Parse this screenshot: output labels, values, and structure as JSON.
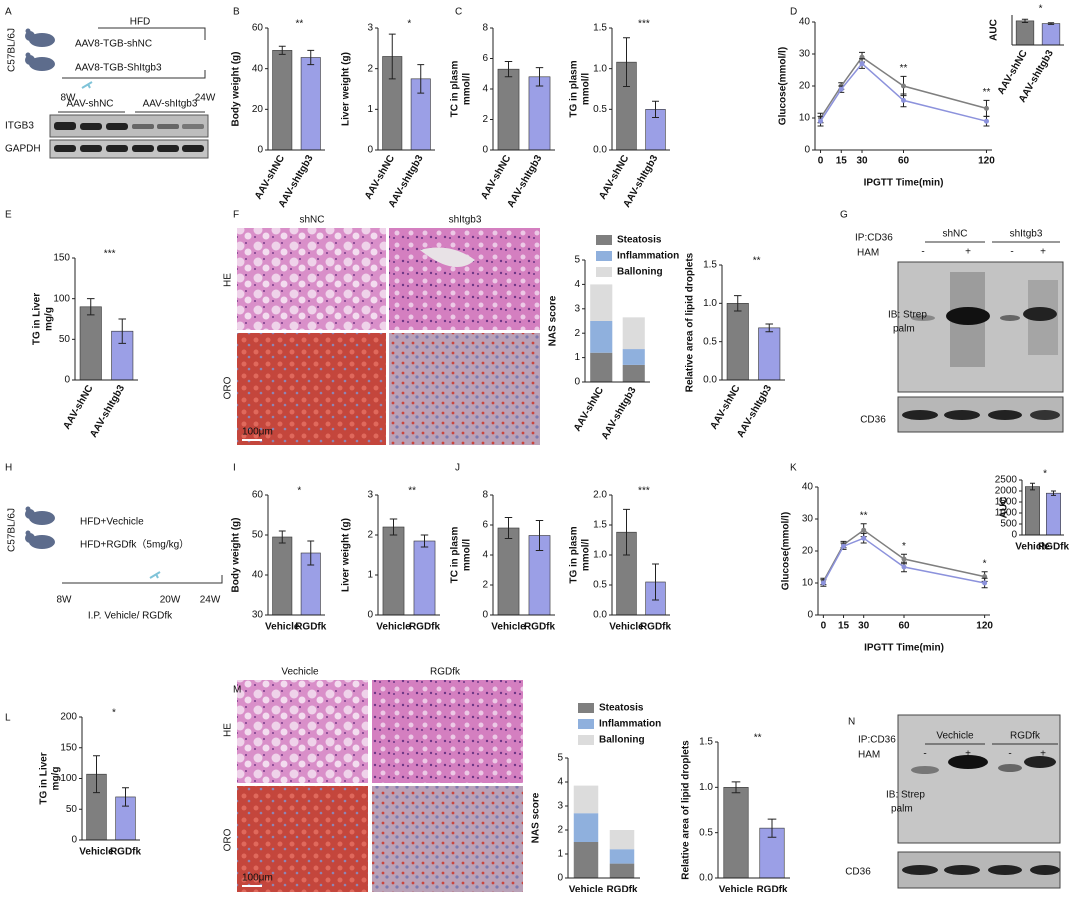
{
  "letters": [
    "A",
    "B",
    "C",
    "D",
    "E",
    "F",
    "G",
    "H",
    "I",
    "J",
    "K",
    "L",
    "M",
    "N"
  ],
  "A": {
    "strain": "C57BL/6J",
    "diet": "HFD",
    "groups": [
      "AAV8-TGB-shNC",
      "AAV8-TGB-ShItgb3"
    ],
    "timepoints": [
      "8W",
      "24W"
    ],
    "blot_groups": [
      "AAV-shNC",
      "AAV-shItgb3"
    ],
    "blot_rows": [
      "ITGB3",
      "GAPDH"
    ]
  },
  "F": {
    "columns": [
      "shNC",
      "shItgb3"
    ],
    "rows": [
      "HE",
      "ORO"
    ],
    "scale_bar": "100μm"
  },
  "G": {
    "ip": "IP:CD36",
    "groups": [
      "shNC",
      "shItgb3"
    ],
    "treatment": "HAM",
    "signs": [
      "-",
      "+",
      "-",
      "+"
    ],
    "rows": [
      "IB: Strep",
      "palm"
    ],
    "loading": "CD36"
  },
  "H": {
    "strain": "C57BL/6J",
    "groups": [
      "HFD+Vechicle",
      "HFD+RGDfk（5mg/kg）"
    ],
    "timepoints": [
      "8W",
      "20W",
      "24W"
    ],
    "injection": "I.P. Vehicle/ RGDfk"
  },
  "M": {
    "columns": [
      "Vechicle",
      "RGDfk"
    ],
    "rows": [
      "HE",
      "ORO"
    ],
    "scale_bar": "100μm"
  },
  "N": {
    "ip": "IP:CD36",
    "groups": [
      "Vechicle",
      "RGDfk"
    ],
    "treatment": "HAM",
    "signs": [
      "-",
      "+",
      "-",
      "+"
    ],
    "rows": [
      "IB: Strep",
      "palm"
    ],
    "loading": "CD36"
  },
  "chart_data": [
    {
      "type": "bar",
      "ylabel": [
        "Body weight (g)"
      ],
      "categories": [
        "AAV-shNC",
        "AAV-shItgb3"
      ],
      "values": [
        49,
        45.5
      ],
      "errors": [
        2,
        3.5
      ],
      "colors": [
        "#7f7f7f",
        "#9b9fe6"
      ],
      "ylim": [
        0,
        60
      ],
      "yticks": [
        0,
        20,
        40,
        60
      ],
      "annotation": "**"
    },
    {
      "type": "bar",
      "ylabel": [
        "Liver weight (g)"
      ],
      "categories": [
        "AAV-shNC",
        "AAV-shItgb3"
      ],
      "values": [
        2.3,
        1.75
      ],
      "errors": [
        0.55,
        0.35
      ],
      "colors": [
        "#7f7f7f",
        "#9b9fe6"
      ],
      "ylim": [
        0,
        3
      ],
      "yticks": [
        0,
        1,
        2,
        3
      ],
      "annotation": "*"
    },
    {
      "type": "bar",
      "ylabel": [
        "TC in plasm",
        "mmol/l"
      ],
      "categories": [
        "AAV-shNC",
        "AAV-shItgb3"
      ],
      "values": [
        5.3,
        4.8
      ],
      "errors": [
        0.5,
        0.6
      ],
      "colors": [
        "#7f7f7f",
        "#9b9fe6"
      ],
      "ylim": [
        0,
        8
      ],
      "yticks": [
        0,
        2,
        4,
        6,
        8
      ]
    },
    {
      "type": "bar",
      "ylabel": [
        "TG in plasm",
        "mmol/l"
      ],
      "categories": [
        "AAV-shNC",
        "AAV-shItgb3"
      ],
      "values": [
        1.08,
        0.5
      ],
      "errors": [
        0.3,
        0.1
      ],
      "colors": [
        "#7f7f7f",
        "#9b9fe6"
      ],
      "ylim": [
        0,
        1.5
      ],
      "yticks": [
        {
          "value": 0,
          "label": "0.0"
        },
        0.5,
        {
          "value": 1,
          "label": "1.0"
        },
        1.5
      ],
      "annotation": "***"
    },
    {
      "type": "line",
      "ylabel": [
        "Glucose(mmol/l)"
      ],
      "xlabel": "IPGTT Time(min)",
      "x": [
        0,
        15,
        30,
        60,
        120
      ],
      "xlim": [
        -4,
        124
      ],
      "xticks": [
        0,
        15,
        30,
        60,
        120
      ],
      "ylim": [
        0,
        40
      ],
      "yticks": [
        0,
        10,
        20,
        30,
        40
      ],
      "series": [
        {
          "color": "#7f7f7f",
          "values": [
            10,
            20,
            29,
            20,
            13
          ],
          "errors": [
            1.5,
            1,
            1.5,
            3,
            2.5
          ]
        },
        {
          "color": "#8c92dc",
          "values": [
            9,
            19,
            27,
            15.5,
            9
          ],
          "errors": [
            1.5,
            1,
            1.5,
            2,
            1.5
          ]
        }
      ],
      "annotations": [
        {
          "x": 60,
          "text": "**"
        },
        {
          "x": 120,
          "text": "**"
        }
      ]
    },
    {
      "type": "bar",
      "ylabel": [
        "AUC"
      ],
      "categories": [
        "AAV-shNC",
        "AAV-shItgb3"
      ],
      "values": [
        2250,
        2000
      ],
      "errors": [
        150,
        80
      ],
      "colors": [
        "#7f7f7f",
        "#9b9fe6"
      ],
      "ylim": [
        0,
        2800
      ],
      "annotation": "*"
    },
    {
      "type": "bar",
      "ylabel": [
        "TG in Liver",
        "mg/g"
      ],
      "categories": [
        "AAV-shNC",
        "AAV-shItgb3"
      ],
      "values": [
        90,
        60
      ],
      "errors": [
        10,
        15
      ],
      "colors": [
        "#7f7f7f",
        "#9b9fe6"
      ],
      "ylim": [
        0,
        150
      ],
      "yticks": [
        0,
        50,
        100,
        150
      ],
      "annotation": "***"
    },
    {
      "type": "stacked_bar",
      "ylabel": [
        "NAS score"
      ],
      "categories": [
        "AAV-shNC",
        "AAV-shItgb3"
      ],
      "series": [
        {
          "name": "Steatosis",
          "color": "#7f7f7f",
          "values": [
            1.2,
            0.7
          ]
        },
        {
          "name": "Inflammation",
          "color": "#8fb0dd",
          "values": [
            1.3,
            0.65
          ]
        },
        {
          "name": "Balloning",
          "color": "#dcdcdc",
          "values": [
            1.5,
            1.3
          ]
        }
      ],
      "ylim": [
        0,
        5
      ],
      "yticks": [
        0,
        1,
        2,
        3,
        4,
        5
      ]
    },
    {
      "type": "bar",
      "ylabel": [
        "Relative area of lipid droplets"
      ],
      "categories": [
        "AAV-shNC",
        "AAV-shItgb3"
      ],
      "values": [
        1.0,
        0.68
      ],
      "errors": [
        0.1,
        0.05
      ],
      "colors": [
        "#7f7f7f",
        "#9b9fe6"
      ],
      "ylim": [
        0,
        1.5
      ],
      "yticks": [
        {
          "value": 0,
          "label": "0.0"
        },
        0.5,
        {
          "value": 1,
          "label": "1.0"
        },
        1.5
      ],
      "annotation": "**"
    },
    {
      "type": "bar",
      "ylabel": [
        "Body weight (g)"
      ],
      "categories": [
        "Vehicle",
        "RGDfk"
      ],
      "values": [
        49.5,
        45.5
      ],
      "errors": [
        1.5,
        3
      ],
      "colors": [
        "#7f7f7f",
        "#9b9fe6"
      ],
      "ylim": [
        30,
        60
      ],
      "yticks": [
        30,
        40,
        50,
        60
      ],
      "annotation": "*"
    },
    {
      "type": "bar",
      "ylabel": [
        "Liver weight (g)"
      ],
      "categories": [
        "Vehicle",
        "RGDfk"
      ],
      "values": [
        2.2,
        1.85
      ],
      "errors": [
        0.2,
        0.15
      ],
      "colors": [
        "#7f7f7f",
        "#9b9fe6"
      ],
      "ylim": [
        0,
        3
      ],
      "yticks": [
        0,
        1,
        2,
        3
      ],
      "annotation": "**"
    },
    {
      "type": "bar",
      "ylabel": [
        "TC in plasm",
        "mmol/l"
      ],
      "categories": [
        "Vehicle",
        "RGDfk"
      ],
      "values": [
        5.8,
        5.3
      ],
      "errors": [
        0.7,
        1.0
      ],
      "colors": [
        "#7f7f7f",
        "#9b9fe6"
      ],
      "ylim": [
        0,
        8
      ],
      "yticks": [
        0,
        2,
        4,
        6,
        8
      ]
    },
    {
      "type": "bar",
      "ylabel": [
        "TG in plasm",
        "mmol/l"
      ],
      "categories": [
        "Vehicle",
        "RGDfk"
      ],
      "values": [
        1.38,
        0.55
      ],
      "errors": [
        0.38,
        0.3
      ],
      "colors": [
        "#7f7f7f",
        "#9b9fe6"
      ],
      "ylim": [
        0,
        2
      ],
      "yticks": [
        {
          "value": 0,
          "label": "0.0"
        },
        0.5,
        {
          "value": 1,
          "label": "1.0"
        },
        1.5,
        {
          "value": 2,
          "label": "2.0"
        }
      ],
      "annotation": "***"
    },
    {
      "type": "line",
      "ylabel": [
        "Glucose(mmol/l)"
      ],
      "xlabel": "IPGTT Time(min)",
      "x": [
        0,
        15,
        30,
        60,
        120
      ],
      "xlim": [
        -4,
        124
      ],
      "xticks": [
        0,
        15,
        30,
        60,
        120
      ],
      "ylim": [
        0,
        40
      ],
      "yticks": [
        0,
        10,
        20,
        30,
        40
      ],
      "series": [
        {
          "color": "#7f7f7f",
          "values": [
            10.5,
            22,
            26.5,
            17.5,
            12
          ],
          "errors": [
            1,
            1,
            2,
            1.5,
            1.5
          ]
        },
        {
          "color": "#8c92dc",
          "values": [
            10,
            21.5,
            24,
            15,
            10
          ],
          "errors": [
            1,
            1,
            1.5,
            1.5,
            1.5
          ]
        }
      ],
      "annotations": [
        {
          "x": 30,
          "text": "**"
        },
        {
          "x": 60,
          "text": "*"
        },
        {
          "x": 120,
          "text": "*"
        }
      ]
    },
    {
      "type": "bar",
      "ylabel": [
        "AUC"
      ],
      "categories": [
        "Vehicle",
        "RGDfk"
      ],
      "values": [
        2200,
        1900
      ],
      "errors": [
        150,
        100
      ],
      "colors": [
        "#7f7f7f",
        "#9b9fe6"
      ],
      "ylim": [
        0,
        2500
      ],
      "yticks": [
        0,
        500,
        1000,
        1500,
        2000,
        2500
      ],
      "annotation": "*"
    },
    {
      "type": "bar",
      "ylabel": [
        "TG in Liver",
        "mg/g"
      ],
      "categories": [
        "Vehicle",
        "RGDfk"
      ],
      "values": [
        107,
        70
      ],
      "errors": [
        30,
        15
      ],
      "colors": [
        "#7f7f7f",
        "#9b9fe6"
      ],
      "ylim": [
        0,
        200
      ],
      "yticks": [
        0,
        50,
        100,
        150,
        200
      ],
      "annotation": "*"
    },
    {
      "type": "stacked_bar",
      "ylabel": [
        "NAS score"
      ],
      "categories": [
        "Vehicle",
        "RGDfk"
      ],
      "series": [
        {
          "name": "Steatosis",
          "color": "#7f7f7f",
          "values": [
            1.5,
            0.6
          ]
        },
        {
          "name": "Inflammation",
          "color": "#8fb0dd",
          "values": [
            1.2,
            0.6
          ]
        },
        {
          "name": "Balloning",
          "color": "#dcdcdc",
          "values": [
            1.15,
            0.8
          ]
        }
      ],
      "ylim": [
        0,
        5
      ],
      "yticks": [
        0,
        1,
        2,
        3,
        4,
        5
      ]
    },
    {
      "type": "bar",
      "ylabel": [
        "Relative area of lipid droplets"
      ],
      "categories": [
        "Vehicle",
        "RGDfk"
      ],
      "values": [
        1.0,
        0.55
      ],
      "errors": [
        0.06,
        0.1
      ],
      "colors": [
        "#7f7f7f",
        "#9b9fe6"
      ],
      "ylim": [
        0,
        1.5
      ],
      "yticks": [
        {
          "value": 0,
          "label": "0.0"
        },
        0.5,
        {
          "value": 1,
          "label": "1.0"
        },
        1.5
      ],
      "annotation": "**"
    }
  ]
}
